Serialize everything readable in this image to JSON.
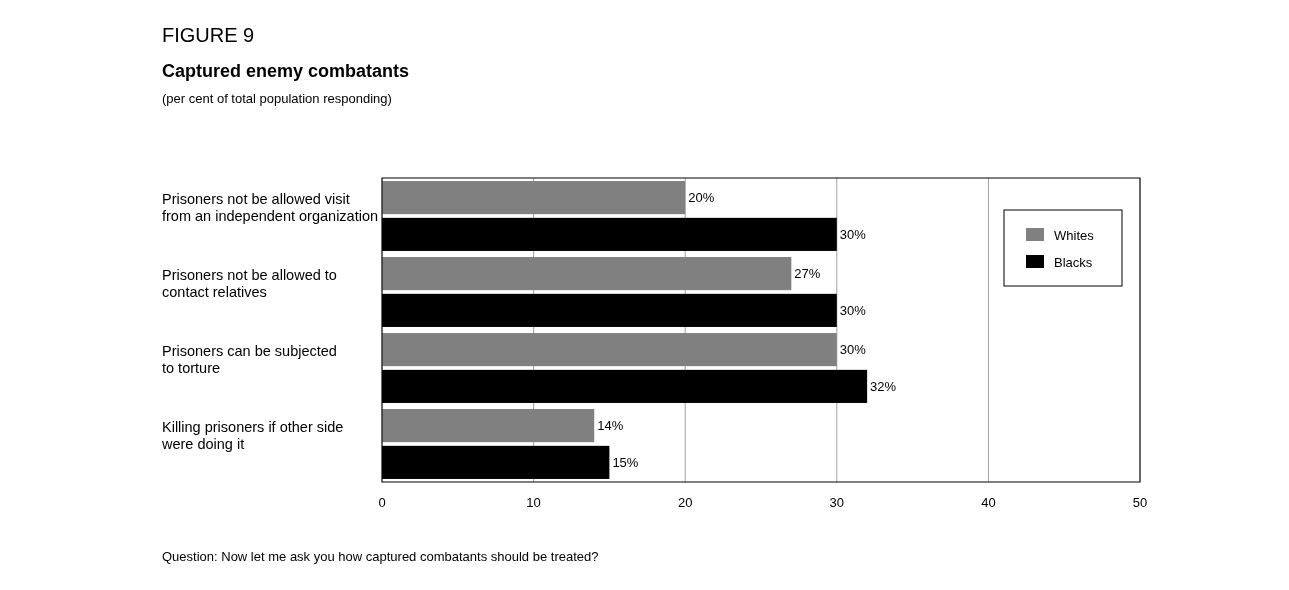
{
  "chart_data": {
    "type": "bar",
    "orientation": "horizontal",
    "title": "FIGURE 9",
    "subtitle": "Captured enemy combatants",
    "categories": [
      "Prisoners not be allowed visit\nfrom an independent organization",
      "Prisoners not be allowed to\ncontact relatives",
      "Prisoners can be subjected\nto torture",
      "Killing prisoners if other side\nwere doing it"
    ],
    "series": [
      {
        "name": "Whites",
        "color": "#808080",
        "values": [
          20,
          27,
          30,
          14
        ],
        "value_labels": [
          "20%",
          "27%",
          "30%",
          "14%"
        ]
      },
      {
        "name": "Blacks",
        "color": "#000000",
        "values": [
          30,
          30,
          32,
          15
        ],
        "value_labels": [
          "30%",
          "30%",
          "32%",
          "15%"
        ]
      }
    ],
    "xlim": [
      0,
      50
    ],
    "xticks": [
      0,
      10,
      20,
      30,
      40,
      50
    ],
    "grid": "x",
    "legend": "top right",
    "annotations": [
      "(per cent of total population responding)",
      "Question: Now let me ask you how captured combatants should be treated?"
    ]
  }
}
